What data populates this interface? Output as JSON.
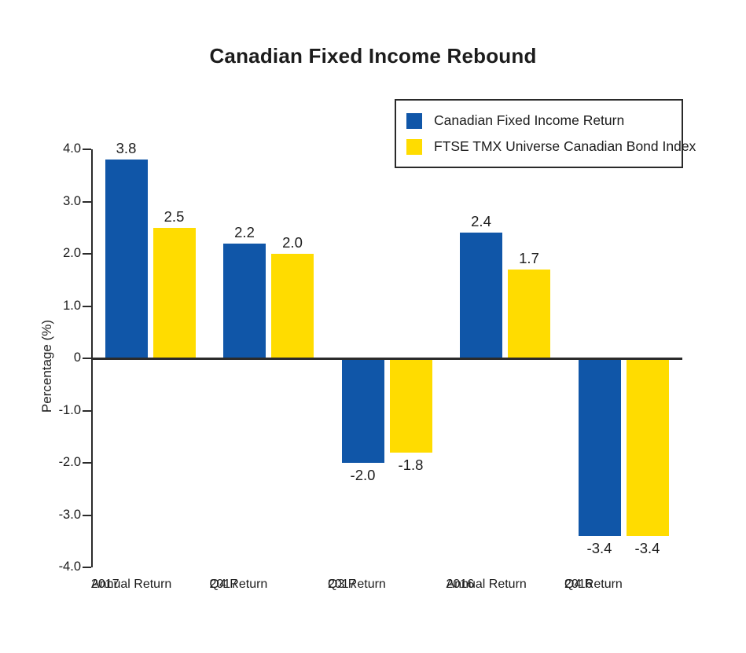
{
  "title": "Canadian Fixed Income Rebound",
  "legend": {
    "items": [
      {
        "label": "Canadian Fixed Income Return",
        "color": "#1056A8"
      },
      {
        "label": "FTSE TMX Universe Canadian Bond Index",
        "color": "#FFDC00"
      }
    ]
  },
  "colors": {
    "blue": "#1056A8",
    "yellow": "#FFDC00",
    "axis": "#2b2b2b",
    "text": "#1c1c1c",
    "background": "#ffffff"
  },
  "chart_data": {
    "type": "bar",
    "title": "Canadian Fixed Income Rebound",
    "categories": [
      "2017\nAnnual Return",
      "2017\nQ4 Return",
      "2017\nQ3 Return",
      "2016\nAnnual Return",
      "2016\nQ4 Return"
    ],
    "series": [
      {
        "name": "Canadian Fixed Income Return",
        "color": "#1056A8",
        "values": [
          3.8,
          2.2,
          -2.0,
          2.4,
          -3.4
        ]
      },
      {
        "name": "FTSE TMX Universe Canadian Bond Index",
        "color": "#FFDC00",
        "values": [
          2.5,
          2.0,
          -1.8,
          1.7,
          -3.4
        ]
      }
    ],
    "xlabel": "",
    "ylabel": "Percentage (%)",
    "ylim": [
      -4.0,
      4.0
    ],
    "ytick_labels": [
      "4.0",
      "3.0",
      "2.0",
      "1.0",
      "0",
      "-1.0",
      "-2.0",
      "-3.0",
      "-4.0"
    ],
    "grid": false,
    "value_labels": true,
    "legend_position": "top-right"
  }
}
